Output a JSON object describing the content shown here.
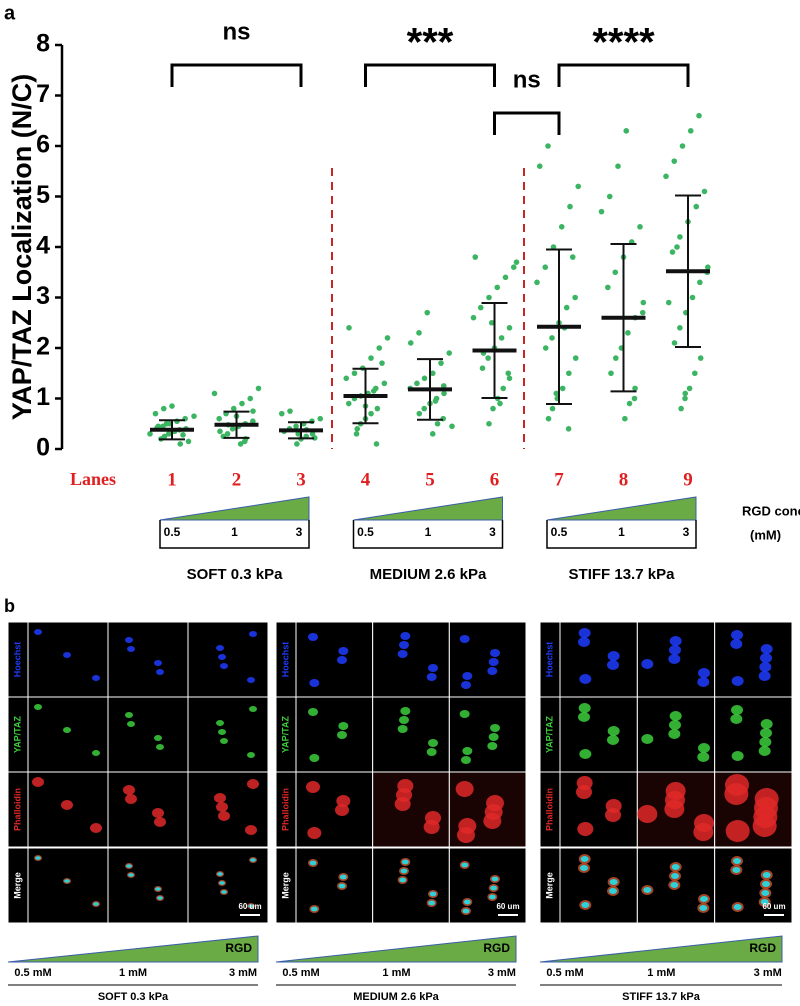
{
  "chart_data": {
    "type": "dot-plot",
    "panel_label": "a",
    "y_label": "YAP/TAZ Localization (N/C)",
    "x_label": "Lanes",
    "ylim": [
      0,
      8
    ],
    "yticks": [
      0,
      1,
      2,
      3,
      4,
      5,
      6,
      7,
      8
    ],
    "dot_color": "#3cb563",
    "lane_color": "#e02020",
    "divider_color": "#c62828",
    "groups": [
      {
        "lane": "1",
        "mean": 0.38,
        "sd": 0.19,
        "values": [
          0.2,
          0.25,
          0.3,
          0.35,
          0.38,
          0.4,
          0.42,
          0.45,
          0.5,
          0.55,
          0.6,
          0.65,
          0.7,
          0.8,
          0.85,
          0.1,
          0.15,
          0.3,
          0.45,
          0.5,
          0.35,
          0.28
        ]
      },
      {
        "lane": "2",
        "mean": 0.48,
        "sd": 0.26,
        "values": [
          0.1,
          0.2,
          0.25,
          0.3,
          0.4,
          0.45,
          0.5,
          0.55,
          0.6,
          0.7,
          0.8,
          0.9,
          1.0,
          1.2,
          0.35,
          0.48,
          0.65,
          0.15,
          0.75,
          1.1
        ]
      },
      {
        "lane": "3",
        "mean": 0.37,
        "sd": 0.16,
        "values": [
          0.1,
          0.2,
          0.25,
          0.3,
          0.35,
          0.4,
          0.45,
          0.5,
          0.55,
          0.6,
          0.7,
          0.75,
          0.3,
          0.38,
          0.22
        ]
      },
      {
        "lane": "4",
        "mean": 1.05,
        "sd": 0.54,
        "values": [
          0.1,
          0.3,
          0.5,
          0.6,
          0.7,
          0.8,
          0.9,
          1.0,
          1.05,
          1.1,
          1.2,
          1.3,
          1.4,
          1.5,
          1.6,
          1.8,
          2.0,
          2.2,
          2.4,
          0.4,
          0.85,
          1.15,
          1.7
        ]
      },
      {
        "lane": "5",
        "mean": 1.18,
        "sd": 0.6,
        "values": [
          0.3,
          0.5,
          0.6,
          0.7,
          0.8,
          0.9,
          1.0,
          1.1,
          1.2,
          1.3,
          1.4,
          1.5,
          1.7,
          1.9,
          2.1,
          2.3,
          2.7,
          0.95,
          1.25,
          0.45
        ]
      },
      {
        "lane": "6",
        "mean": 1.95,
        "sd": 0.94,
        "values": [
          0.5,
          0.8,
          1.0,
          1.2,
          1.4,
          1.6,
          1.8,
          2.0,
          2.2,
          2.4,
          2.6,
          2.8,
          3.0,
          3.2,
          3.4,
          3.6,
          3.8,
          1.9,
          2.5,
          0.9,
          1.5,
          3.7
        ]
      },
      {
        "lane": "7",
        "mean": 2.42,
        "sd": 1.53,
        "values": [
          0.4,
          0.6,
          0.8,
          1.0,
          1.2,
          1.5,
          1.8,
          2.0,
          2.2,
          2.5,
          2.8,
          3.0,
          3.3,
          3.6,
          4.0,
          4.4,
          4.8,
          5.2,
          5.6,
          6.0,
          1.1,
          2.4,
          3.8
        ]
      },
      {
        "lane": "8",
        "mean": 2.6,
        "sd": 1.46,
        "values": [
          0.6,
          0.9,
          1.2,
          1.5,
          1.8,
          2.0,
          2.3,
          2.6,
          2.9,
          3.2,
          3.5,
          3.8,
          4.1,
          4.4,
          4.7,
          5.0,
          5.6,
          6.3,
          1.0,
          2.7
        ]
      },
      {
        "lane": "9",
        "mean": 3.52,
        "sd": 1.5,
        "values": [
          0.8,
          1.0,
          1.2,
          1.5,
          1.8,
          2.1,
          2.4,
          2.7,
          3.0,
          3.3,
          3.6,
          3.9,
          4.2,
          4.5,
          4.8,
          5.1,
          5.4,
          5.7,
          6.0,
          6.3,
          6.6,
          3.5,
          2.9,
          4.0,
          1.1
        ]
      }
    ],
    "comparisons": [
      {
        "from": "1",
        "to": "3",
        "label": "ns"
      },
      {
        "from": "4",
        "to": "6",
        "label": "***"
      },
      {
        "from": "6",
        "to": "7",
        "label": "ns"
      },
      {
        "from": "7",
        "to": "9",
        "label": "****"
      }
    ],
    "rgd_label": [
      "RGD conc.",
      "(mM)"
    ],
    "conditions": [
      {
        "name": "SOFT 0.3 kPa",
        "rgd": [
          0.5,
          1,
          3
        ]
      },
      {
        "name": "MEDIUM 2.6 kPa",
        "rgd": [
          0.5,
          1,
          3
        ]
      },
      {
        "name": "STIFF 13.7 kPa",
        "rgd": [
          0.5,
          1,
          3
        ]
      }
    ]
  },
  "panel_b": {
    "label": "b",
    "channels": [
      "Hoechst",
      "YAP/TAZ",
      "Phalloidin",
      "Merge"
    ],
    "scale_bar": "60 um",
    "gradient_label": "RGD",
    "groups": [
      {
        "name": "SOFT 0.3 kPa",
        "concentrations": [
          "0.5 mM",
          "1 mM",
          "3 mM"
        ]
      },
      {
        "name": "MEDIUM 2.6 kPa",
        "concentrations": [
          "0.5 mM",
          "1 mM",
          "3 mM"
        ]
      },
      {
        "name": "STIFF 13.7 kPa",
        "concentrations": [
          "0.5 mM",
          "1 mM",
          "3 mM"
        ]
      }
    ]
  }
}
